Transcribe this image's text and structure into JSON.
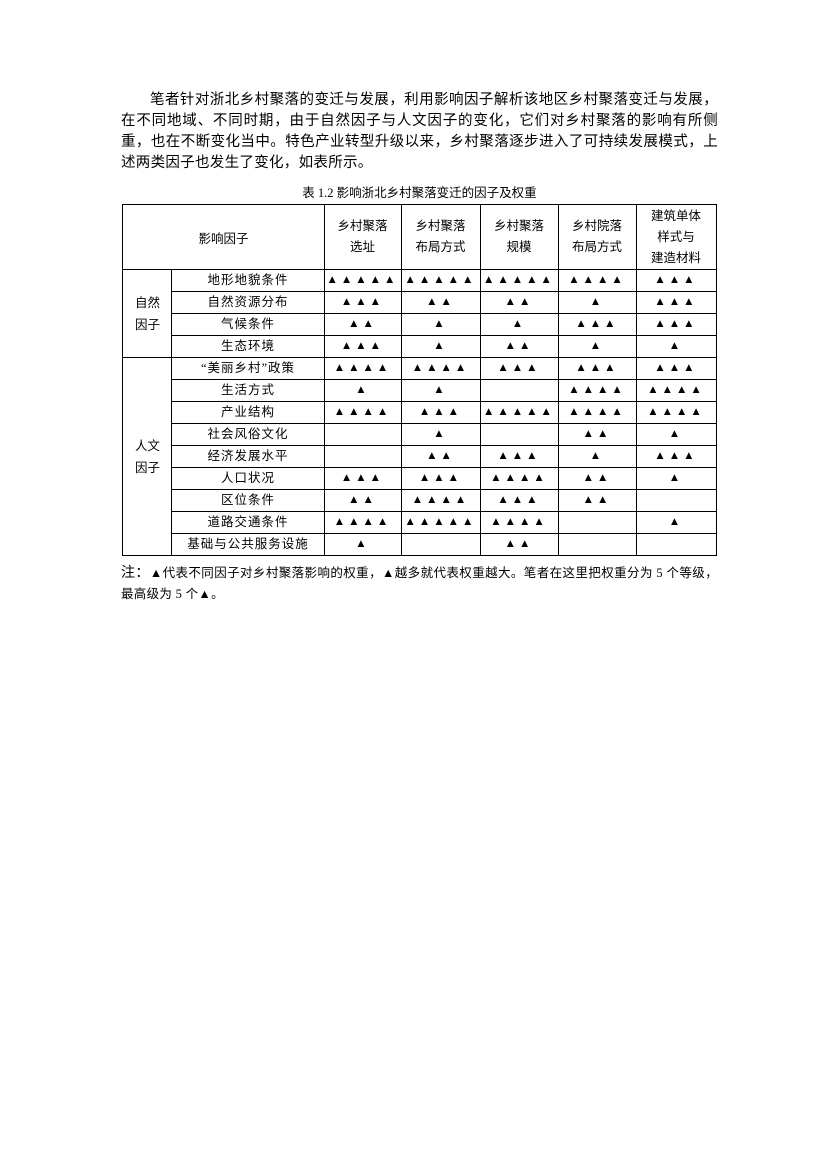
{
  "page": {
    "paragraph": "笔者针对浙北乡村聚落的变迁与发展，利用影响因子解析该地区乡村聚落变迁与发展，在不同地域、不同时期，由于自然因子与人文因子的变化，它们对乡村聚落的影响有所侧重，也在不断变化当中。特色产业转型升级以来，乡村聚落逐步进入了可持续发展模式，上述两类因子也发生了变化，如表所示。",
    "note": {
      "prefix": "注：",
      "text": "▲代表不同因子对乡村聚落影响的权重，▲越多就代表权重越大。笔者在这里把权重分为 5 个等级，最高级为 5 个▲。"
    }
  },
  "table": {
    "title": "表 1.2 影响浙北乡村聚落变迁的因子及权重",
    "weight_symbol": "▲",
    "header": {
      "factor_label": "影响因子",
      "columns": [
        [
          "乡村聚落",
          "选址"
        ],
        [
          "乡村聚落",
          "布局方式"
        ],
        [
          "乡村聚落",
          "规模"
        ],
        [
          "乡村院落",
          "布局方式"
        ],
        [
          "建筑单体",
          "样式与",
          "建造材料"
        ]
      ]
    },
    "groups": [
      {
        "name": [
          "自然",
          "因子"
        ],
        "rows": [
          {
            "factor": "地形地貌条件",
            "weights": [
              5,
              5,
              5,
              4,
              3
            ]
          },
          {
            "factor": "自然资源分布",
            "weights": [
              3,
              2,
              2,
              1,
              3
            ]
          },
          {
            "factor": "气候条件",
            "weights": [
              2,
              1,
              1,
              3,
              3
            ]
          },
          {
            "factor": "生态环境",
            "weights": [
              3,
              1,
              2,
              1,
              1
            ]
          }
        ]
      },
      {
        "name": [
          "人文",
          "因子"
        ],
        "rows": [
          {
            "factor": "“美丽乡村”政策",
            "weights": [
              4,
              4,
              3,
              3,
              3
            ]
          },
          {
            "factor": "生活方式",
            "weights": [
              1,
              1,
              0,
              4,
              4
            ]
          },
          {
            "factor": "产业结构",
            "weights": [
              4,
              3,
              5,
              4,
              4
            ]
          },
          {
            "factor": "社会风俗文化",
            "weights": [
              0,
              1,
              0,
              2,
              1
            ]
          },
          {
            "factor": "经济发展水平",
            "weights": [
              0,
              2,
              3,
              1,
              3
            ]
          },
          {
            "factor": "人口状况",
            "weights": [
              3,
              3,
              4,
              2,
              1
            ]
          },
          {
            "factor": "区位条件",
            "weights": [
              2,
              4,
              3,
              2,
              0
            ]
          },
          {
            "factor": "道路交通条件",
            "weights": [
              4,
              5,
              4,
              0,
              1
            ]
          },
          {
            "factor": "基础与公共服务设施",
            "weights": [
              1,
              0,
              2,
              0,
              0
            ]
          }
        ]
      }
    ]
  }
}
